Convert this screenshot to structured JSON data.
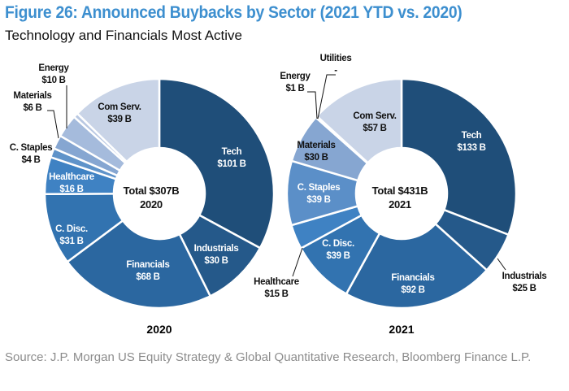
{
  "title": "Figure 26: Announced Buybacks by Sector (2021 YTD vs. 2020)",
  "subtitle": "Technology and Financials Most Active",
  "source": "Source: J.P. Morgan US Equity Strategy & Global Quantitative Research, Bloomberg Finance L.P.",
  "chart_data": [
    {
      "type": "pie",
      "variant": "donut",
      "xlabel": "2020",
      "center_label": [
        "Total $307B",
        "2020"
      ],
      "start": "12 o'clock, clockwise",
      "slices": [
        {
          "name": "Tech",
          "value": 101,
          "label": "$101 B",
          "color": "#1f4e79"
        },
        {
          "name": "Industrials",
          "value": 30,
          "label": "$30 B",
          "color": "#25598a"
        },
        {
          "name": "Financials",
          "value": 68,
          "label": "$68 B",
          "color": "#2b67a0"
        },
        {
          "name": "C. Disc.",
          "value": 31,
          "label": "$31 B",
          "color": "#3273b0"
        },
        {
          "name": "Healthcare",
          "value": 16,
          "label": "$16 B",
          "color": "#3f82c3"
        },
        {
          "name": "C. Staples",
          "value": 4,
          "label": "$4 B",
          "color": "#5f93c9"
        },
        {
          "name": "Materials",
          "value": 6,
          "label": "$6 B",
          "color": "#86a6d1"
        },
        {
          "name": "Energy",
          "value": 10,
          "label": "$10 B",
          "color": "#a5bbdc"
        },
        {
          "name": "",
          "value": 2,
          "label": "",
          "color": "#b9c8e2"
        },
        {
          "name": "Com Serv.",
          "value": 39,
          "label": "$39 B",
          "color": "#c9d4e7"
        }
      ]
    },
    {
      "type": "pie",
      "variant": "donut",
      "xlabel": "2021",
      "center_label": [
        "Total $431B",
        "2021"
      ],
      "start": "12 o'clock, clockwise",
      "slices": [
        {
          "name": "Tech",
          "value": 133,
          "label": "$133 B",
          "color": "#1f4e79"
        },
        {
          "name": "Industrials",
          "value": 25,
          "label": "$25 B",
          "color": "#25598a"
        },
        {
          "name": "Financials",
          "value": 92,
          "label": "$92 B",
          "color": "#2b67a0"
        },
        {
          "name": "C. Disc.",
          "value": 39,
          "label": "$39 B",
          "color": "#3273b0"
        },
        {
          "name": "Healthcare",
          "value": 15,
          "label": "$15 B",
          "color": "#3f82c3"
        },
        {
          "name": "C. Staples",
          "value": 39,
          "label": "$39 B",
          "color": "#5b8fc8"
        },
        {
          "name": "Materials",
          "value": 30,
          "label": "$30 B",
          "color": "#86a6d1"
        },
        {
          "name": "Energy",
          "value": 1,
          "label": "$1 B",
          "color": "#a5bbdc"
        },
        {
          "name": "Utilities",
          "value": 0,
          "label": "-",
          "color": "#b9c8e2"
        },
        {
          "name": "Com Serv.",
          "value": 57,
          "label": "$57 B",
          "color": "#c9d4e7"
        }
      ]
    }
  ]
}
